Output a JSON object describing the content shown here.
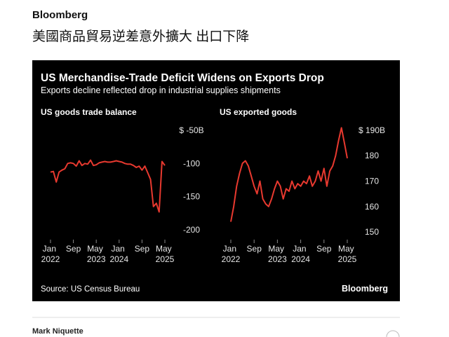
{
  "brand": "Bloomberg",
  "headline": "美國商品貿易逆差意外擴大 出口下降",
  "figure": {
    "title": "US Merchandise-Trade Deficit Widens on Exports Drop",
    "subtitle": "Exports decline reflected drop in industrial supplies shipments",
    "source": "Source: US Census Bureau",
    "brand": "Bloomberg"
  },
  "author": "Mark Niquette",
  "chart_data": [
    {
      "type": "line",
      "title": "US goods trade balance",
      "color": "#e8392f",
      "x": [
        "2022-01",
        "2022-02",
        "2022-03",
        "2022-04",
        "2022-05",
        "2022-06",
        "2022-07",
        "2022-08",
        "2022-09",
        "2022-10",
        "2022-11",
        "2022-12",
        "2023-01",
        "2023-02",
        "2023-03",
        "2023-04",
        "2023-05",
        "2023-06",
        "2023-07",
        "2023-08",
        "2023-09",
        "2023-10",
        "2023-11",
        "2023-12",
        "2024-01",
        "2024-02",
        "2024-03",
        "2024-04",
        "2024-05",
        "2024-06",
        "2024-07",
        "2024-08",
        "2024-09",
        "2024-10",
        "2024-11",
        "2024-12",
        "2025-01",
        "2025-02",
        "2025-03",
        "2025-04",
        "2025-05"
      ],
      "values": [
        -113,
        -112,
        -128,
        -113,
        -110,
        -108,
        -100,
        -99,
        -100,
        -104,
        -96,
        -103,
        -100,
        -101,
        -95,
        -103,
        -102,
        -99,
        -98,
        -97,
        -98,
        -98,
        -97,
        -96,
        -97,
        -98,
        -100,
        -101,
        -101,
        -103,
        -106,
        -104,
        -110,
        -104,
        -114,
        -124,
        -165,
        -160,
        -173,
        -97,
        -103
      ],
      "ylim": [
        -210,
        -40
      ],
      "yticks": [
        {
          "value": -50,
          "label": "$ -50B"
        },
        -100,
        -150,
        -200
      ],
      "xticks": [
        {
          "value": "2022-01",
          "label": "Jan 2022"
        },
        {
          "value": "2022-09",
          "label": "Sep"
        },
        {
          "value": "2023-05",
          "label": "May 2023"
        },
        {
          "value": "2024-01",
          "label": "Jan 2024"
        },
        {
          "value": "2024-09",
          "label": "Sep"
        },
        {
          "value": "2025-05",
          "label": "May 2025"
        }
      ]
    },
    {
      "type": "line",
      "title": "US exported goods",
      "color": "#e8392f",
      "x": [
        "2022-01",
        "2022-02",
        "2022-03",
        "2022-04",
        "2022-05",
        "2022-06",
        "2022-07",
        "2022-08",
        "2022-09",
        "2022-10",
        "2022-11",
        "2022-12",
        "2023-01",
        "2023-02",
        "2023-03",
        "2023-04",
        "2023-05",
        "2023-06",
        "2023-07",
        "2023-08",
        "2023-09",
        "2023-10",
        "2023-11",
        "2023-12",
        "2024-01",
        "2024-02",
        "2024-03",
        "2024-04",
        "2024-05",
        "2024-06",
        "2024-07",
        "2024-08",
        "2024-09",
        "2024-10",
        "2024-11",
        "2024-12",
        "2025-01",
        "2025-02",
        "2025-03",
        "2025-04",
        "2025-05"
      ],
      "values": [
        154,
        160,
        168,
        173,
        177,
        178,
        176,
        172,
        168,
        165,
        170,
        163,
        161,
        160,
        163,
        167,
        170,
        168,
        163,
        167,
        166,
        170,
        167,
        169,
        168,
        170,
        169,
        172,
        168,
        170,
        174,
        170,
        175,
        168,
        174,
        176,
        180,
        186,
        191,
        185,
        179
      ],
      "ylim": [
        147,
        193
      ],
      "yticks": [
        {
          "value": 190,
          "label": "$ 190B"
        },
        180,
        170,
        160,
        150
      ],
      "xticks": [
        {
          "value": "2022-01",
          "label": "Jan 2022"
        },
        {
          "value": "2022-09",
          "label": "Sep"
        },
        {
          "value": "2023-05",
          "label": "May 2023"
        },
        {
          "value": "2024-01",
          "label": "Jan 2024"
        },
        {
          "value": "2024-09",
          "label": "Sep"
        },
        {
          "value": "2025-05",
          "label": "May 2025"
        }
      ]
    }
  ]
}
